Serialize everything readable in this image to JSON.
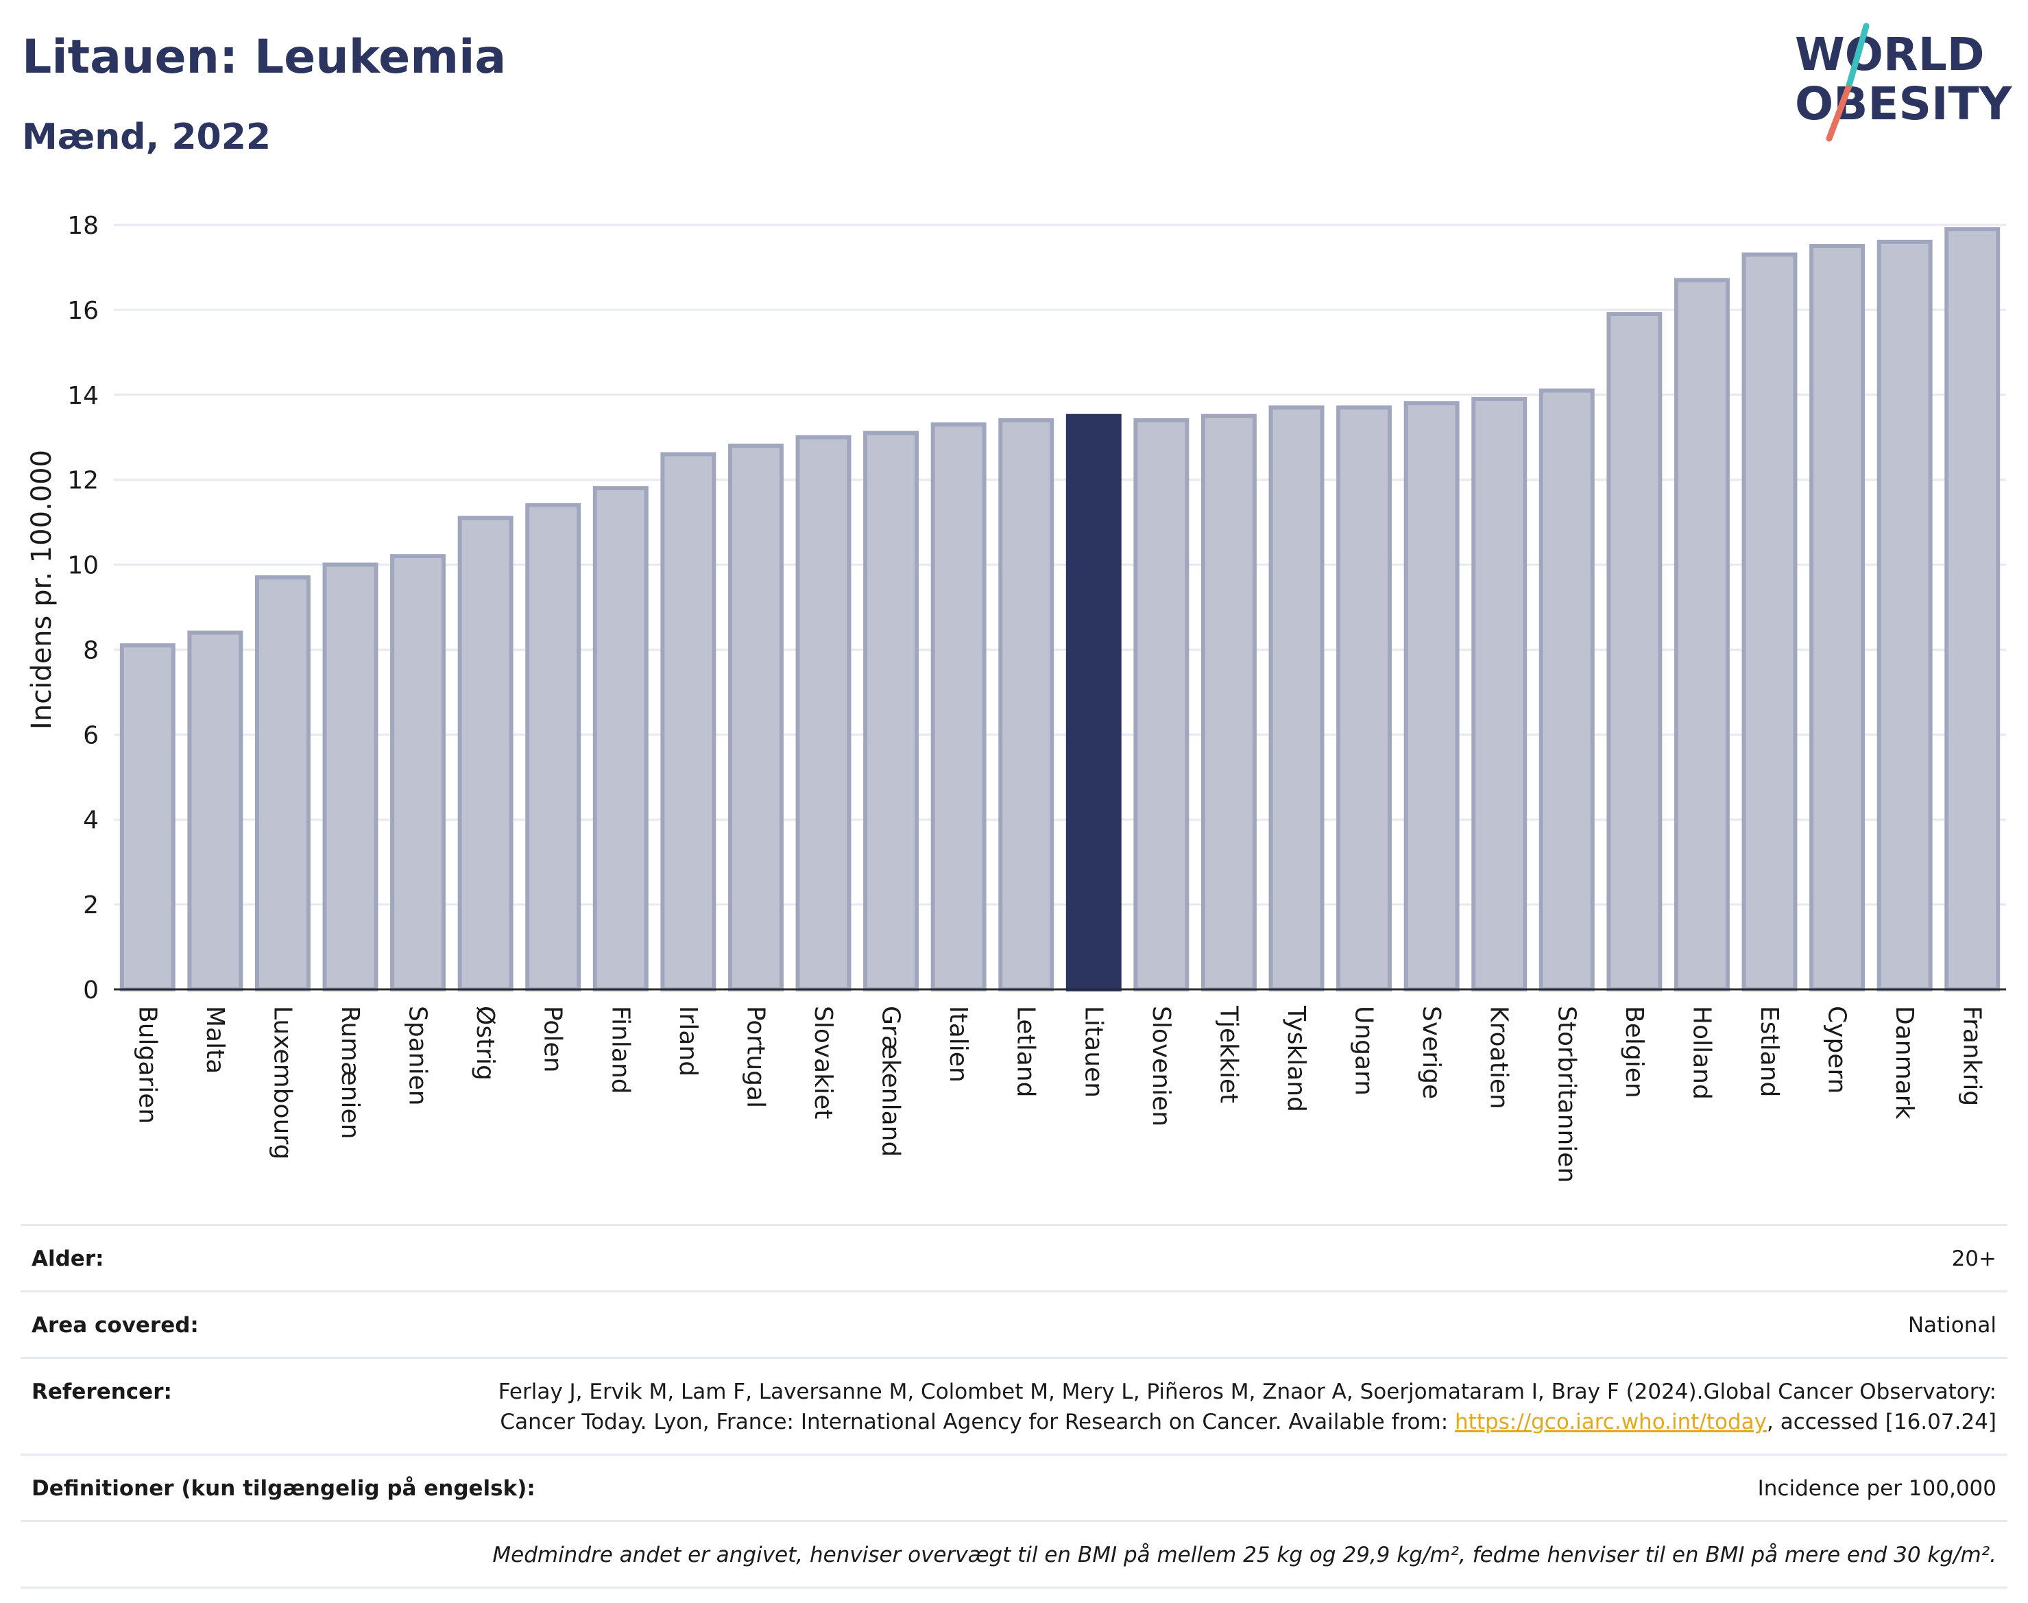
{
  "header": {
    "title": "Litauen: Leukemia",
    "subtitle": "Mænd, 2022",
    "logo_line1": "WORLD",
    "logo_line2": "OBESITY"
  },
  "colors": {
    "bar": "#bfc3d1",
    "bar_stroke": "#a0a6bd",
    "highlight": "#2b3560",
    "title": "#2b3560",
    "link": "#e3a91c",
    "logo_accent_teal": "#3bbfbf",
    "logo_accent_red": "#e8705f"
  },
  "chart_data": {
    "type": "bar",
    "ylabel": "Incidens pr. 100.000",
    "xlabel": "",
    "ylim": [
      0,
      18
    ],
    "yticks": [
      0,
      2,
      4,
      6,
      8,
      10,
      12,
      14,
      16,
      18
    ],
    "grid": true,
    "highlight": "Litauen",
    "categories": [
      "Bulgarien",
      "Malta",
      "Luxembourg",
      "Rumænien",
      "Spanien",
      "Østrig",
      "Polen",
      "Finland",
      "Irland",
      "Portugal",
      "Slovakiet",
      "Grækenland",
      "Italien",
      "Letland",
      "Litauen",
      "Slovenien",
      "Tjekkiet",
      "Tyskland",
      "Ungarn",
      "Sverige",
      "Kroatien",
      "Storbritannien",
      "Belgien",
      "Holland",
      "Estland",
      "Cypern",
      "Danmark",
      "Frankrig"
    ],
    "values": [
      8.1,
      8.4,
      9.7,
      10.0,
      10.2,
      11.1,
      11.4,
      11.8,
      12.6,
      12.8,
      13.0,
      13.1,
      13.3,
      13.4,
      13.5,
      13.4,
      13.5,
      13.7,
      13.7,
      13.8,
      13.9,
      14.1,
      15.9,
      16.7,
      17.3,
      17.5,
      17.6,
      17.9
    ]
  },
  "info": {
    "age_label": "Alder:",
    "age_value": "20+",
    "area_label": "Area covered:",
    "area_value": "National",
    "ref_label": "Referencer:",
    "ref_text": "Ferlay J, Ervik M, Lam F, Laversanne M, Colombet M, Mery L, Piñeros M, Znaor A, Soerjomataram I, Bray F (2024).Global Cancer Observatory: Cancer Today. Lyon, France: International Agency for Research on Cancer. Available from: ",
    "ref_link": "https://gco.iarc.who.int/today",
    "ref_suffix": ", accessed [16.07.24]",
    "def_label": "Definitioner (kun tilgængelig på engelsk):",
    "def_value": "Incidence per 100,000",
    "note": "Medmindre andet er angivet, henviser overvægt til en BMI på mellem 25 kg og 29,9 kg/m², fedme henviser til en BMI på mere end 30 kg/m²."
  }
}
